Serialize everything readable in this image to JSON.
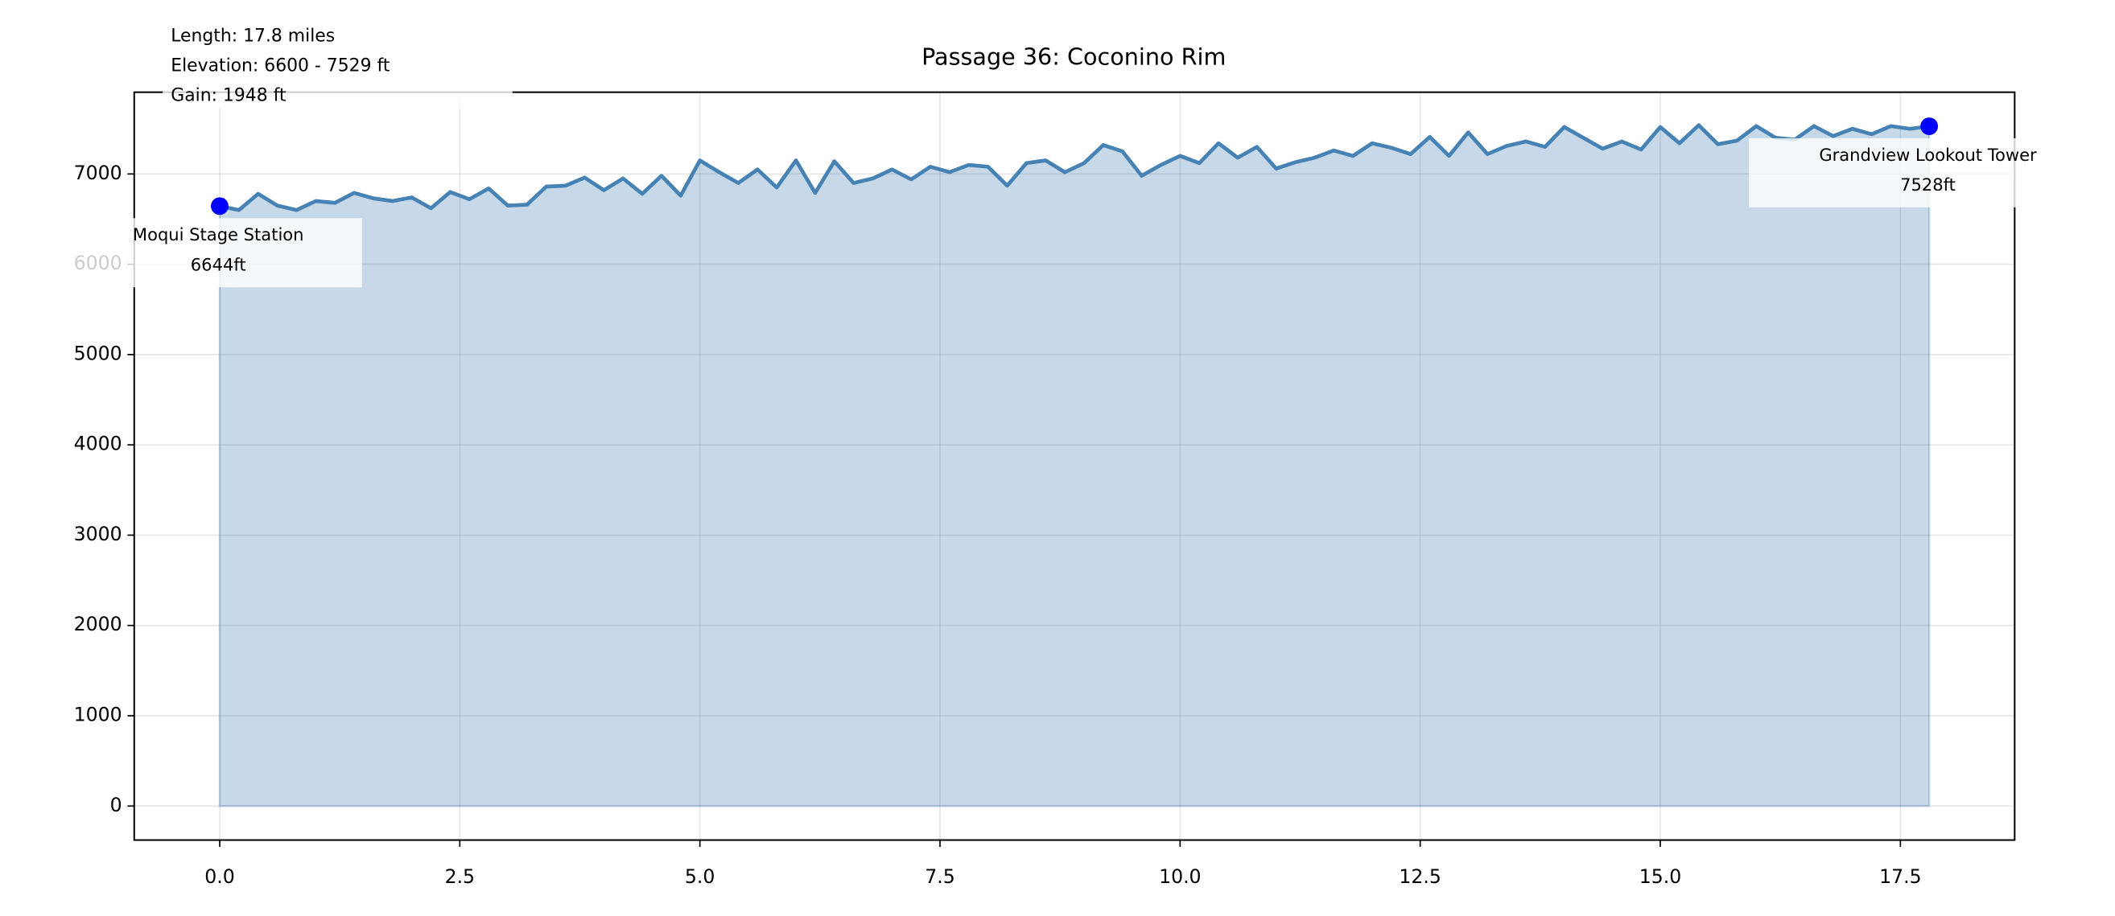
{
  "chart_data": {
    "type": "area",
    "title": "Passage 36: Coconino Rim",
    "info": [
      "Length: 17.8 miles",
      "Elevation: 6600 - 7529 ft",
      "Gain: 1948 ft"
    ],
    "x": [
      0.0,
      0.2,
      0.4,
      0.6,
      0.8,
      1.0,
      1.2,
      1.4,
      1.6,
      1.8,
      2.0,
      2.2,
      2.4,
      2.6,
      2.8,
      3.0,
      3.2,
      3.4,
      3.6,
      3.8,
      4.0,
      4.2,
      4.4,
      4.6,
      4.8,
      5.0,
      5.2,
      5.4,
      5.6,
      5.8,
      6.0,
      6.2,
      6.4,
      6.6,
      6.8,
      7.0,
      7.2,
      7.4,
      7.6,
      7.8,
      8.0,
      8.2,
      8.4,
      8.6,
      8.8,
      9.0,
      9.2,
      9.4,
      9.6,
      9.8,
      10.0,
      10.2,
      10.4,
      10.6,
      10.8,
      11.0,
      11.2,
      11.4,
      11.6,
      11.8,
      12.0,
      12.2,
      12.4,
      12.6,
      12.8,
      13.0,
      13.2,
      13.4,
      13.6,
      13.8,
      14.0,
      14.2,
      14.4,
      14.6,
      14.8,
      15.0,
      15.2,
      15.4,
      15.6,
      15.8,
      16.0,
      16.2,
      16.4,
      16.6,
      16.8,
      17.0,
      17.2,
      17.4,
      17.6,
      17.8
    ],
    "series": [
      {
        "color": "#4682b4",
        "values": [
          6644,
          6600,
          6780,
          6650,
          6600,
          6700,
          6680,
          6790,
          6730,
          6700,
          6740,
          6620,
          6800,
          6720,
          6840,
          6650,
          6660,
          6860,
          6870,
          6960,
          6820,
          6950,
          6780,
          6980,
          6760,
          7150,
          7020,
          6900,
          7050,
          6850,
          7150,
          6790,
          7140,
          6900,
          6950,
          7050,
          6940,
          7080,
          7020,
          7100,
          7080,
          6870,
          7120,
          7150,
          7020,
          7120,
          7320,
          7250,
          6980,
          7100,
          7200,
          7120,
          7340,
          7180,
          7300,
          7060,
          7130,
          7180,
          7260,
          7200,
          7340,
          7290,
          7220,
          7410,
          7200,
          7460,
          7220,
          7310,
          7360,
          7300,
          7520,
          7400,
          7280,
          7360,
          7270,
          7520,
          7340,
          7540,
          7330,
          7370,
          7530,
          7400,
          7380,
          7530,
          7420,
          7500,
          7440,
          7530,
          7500,
          7528
        ]
      }
    ],
    "points": [
      {
        "name": "Moqui Stage Station",
        "x": 0,
        "elevation": 6644,
        "label": "6644ft",
        "color": "#0000ff"
      },
      {
        "name": "Grandview Lookout Tower",
        "x": 17.8,
        "elevation": 7528,
        "label": "7528ft",
        "color": "#0000ff"
      }
    ],
    "xlim": [
      -0.89,
      18.69
    ],
    "ylim": [
      -376.45,
      7905.45
    ],
    "xticks": [
      {
        "value": 0,
        "label": "0.0"
      },
      2.5,
      {
        "value": 5,
        "label": "5.0"
      },
      7.5,
      {
        "value": 10,
        "label": "10.0"
      },
      12.5,
      {
        "value": 15,
        "label": "15.0"
      },
      17.5
    ],
    "yticks": [
      0,
      1000,
      2000,
      3000,
      4000,
      5000,
      6000,
      7000
    ],
    "grid": true
  }
}
